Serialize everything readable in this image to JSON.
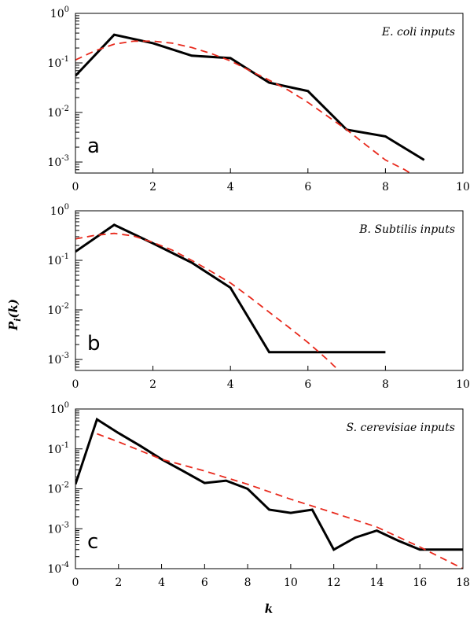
{
  "figure": {
    "ylabel": "P",
    "ylabel_sub": "i",
    "ylabel_arg": "(k)",
    "xlabel": "k"
  },
  "chart_data": [
    {
      "type": "line",
      "panel_letter": "a",
      "annotation": "E. coli inputs",
      "yscale": "log",
      "xlim": [
        0,
        10
      ],
      "ylim": [
        0.0006,
        1
      ],
      "xticks": [
        0,
        2,
        4,
        6,
        8,
        10
      ],
      "xtick_labels": [
        "0",
        "2",
        "4",
        "6",
        "8",
        "10"
      ],
      "yticks": [
        {
          "value": 1,
          "base": "10",
          "exp": "0"
        },
        {
          "value": 0.1,
          "base": "10",
          "exp": "-1"
        },
        {
          "value": 0.01,
          "base": "10",
          "exp": "-2"
        },
        {
          "value": 0.001,
          "base": "10",
          "exp": "-3"
        }
      ],
      "series": [
        {
          "style": "solid",
          "color": "#000000",
          "x": [
            0,
            1,
            2,
            3,
            4,
            5,
            6,
            7,
            8,
            9
          ],
          "y": [
            0.055,
            0.37,
            0.25,
            0.14,
            0.125,
            0.04,
            0.027,
            0.0045,
            0.0033,
            0.0011
          ]
        },
        {
          "style": "dashed",
          "color": "#e8291c",
          "x": [
            0,
            0.5,
            1,
            1.5,
            2,
            2.5,
            3,
            3.5,
            4,
            4.5,
            5,
            5.5,
            6,
            6.5,
            7,
            7.5,
            8,
            8.5,
            8.8
          ],
          "y": [
            0.115,
            0.175,
            0.24,
            0.275,
            0.275,
            0.25,
            0.205,
            0.155,
            0.11,
            0.07,
            0.045,
            0.028,
            0.016,
            0.0085,
            0.0045,
            0.0022,
            0.0011,
            0.0007,
            0.0005
          ]
        }
      ]
    },
    {
      "type": "line",
      "panel_letter": "b",
      "annotation": "B. Subtilis inputs",
      "yscale": "log",
      "xlim": [
        0,
        10
      ],
      "ylim": [
        0.0006,
        1
      ],
      "xticks": [
        0,
        2,
        4,
        6,
        8,
        10
      ],
      "xtick_labels": [
        "0",
        "2",
        "4",
        "6",
        "8",
        "10"
      ],
      "yticks": [
        {
          "value": 1,
          "base": "10",
          "exp": "0"
        },
        {
          "value": 0.1,
          "base": "10",
          "exp": "-1"
        },
        {
          "value": 0.01,
          "base": "10",
          "exp": "-2"
        },
        {
          "value": 0.001,
          "base": "10",
          "exp": "-3"
        }
      ],
      "series": [
        {
          "style": "solid",
          "color": "#000000",
          "x": [
            0,
            1,
            2,
            3,
            4,
            5,
            6,
            7,
            8
          ],
          "y": [
            0.15,
            0.52,
            0.22,
            0.09,
            0.028,
            0.0014,
            0.0014,
            0.0014,
            0.0014
          ]
        },
        {
          "style": "dashed",
          "color": "#e8291c",
          "x": [
            0,
            0.5,
            1,
            1.5,
            2,
            2.5,
            3,
            3.5,
            4,
            4.5,
            5,
            5.5,
            6,
            6.5,
            6.9
          ],
          "y": [
            0.27,
            0.32,
            0.35,
            0.31,
            0.23,
            0.16,
            0.1,
            0.06,
            0.035,
            0.018,
            0.009,
            0.0045,
            0.0022,
            0.001,
            0.0005
          ]
        }
      ]
    },
    {
      "type": "line",
      "panel_letter": "c",
      "annotation": "S. cerevisiae inputs",
      "yscale": "log",
      "xlim": [
        0,
        18
      ],
      "ylim": [
        0.0001,
        1
      ],
      "xticks": [
        0,
        2,
        4,
        6,
        8,
        10,
        12,
        14,
        16,
        18
      ],
      "xtick_labels": [
        "0",
        "2",
        "4",
        "6",
        "8",
        "10",
        "12",
        "14",
        "16",
        "18"
      ],
      "yticks": [
        {
          "value": 1,
          "base": "10",
          "exp": "0"
        },
        {
          "value": 0.1,
          "base": "10",
          "exp": "-1"
        },
        {
          "value": 0.01,
          "base": "10",
          "exp": "-2"
        },
        {
          "value": 0.001,
          "base": "10",
          "exp": "-3"
        },
        {
          "value": 0.0001,
          "base": "10",
          "exp": "-4"
        }
      ],
      "series": [
        {
          "style": "solid",
          "color": "#000000",
          "x": [
            0,
            1,
            2,
            3,
            4,
            5,
            6,
            7,
            8,
            9,
            10,
            11,
            12,
            13,
            14,
            15,
            16,
            17,
            18
          ],
          "y": [
            0.013,
            0.55,
            0.25,
            0.12,
            0.055,
            0.028,
            0.014,
            0.016,
            0.01,
            0.003,
            0.0025,
            0.003,
            0.0003,
            0.0006,
            0.0009,
            0.0005,
            0.0003,
            0.0003,
            0.0003
          ]
        },
        {
          "style": "dashed",
          "color": "#e8291c",
          "x": [
            1,
            2,
            4,
            6,
            8,
            10,
            12,
            14,
            16,
            18
          ],
          "y": [
            0.24,
            0.15,
            0.055,
            0.028,
            0.013,
            0.0055,
            0.0025,
            0.0011,
            0.00035,
            0.0001
          ]
        }
      ]
    }
  ]
}
